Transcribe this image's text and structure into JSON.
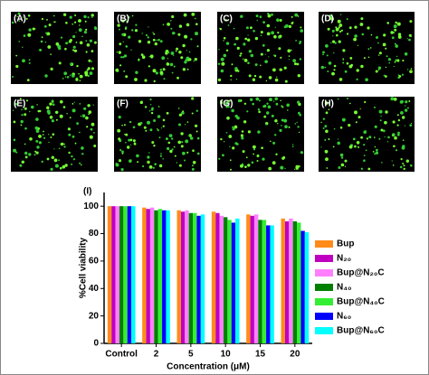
{
  "panels": [
    "(A)",
    "(B)",
    "(C)",
    "(D)",
    "(E)",
    "(F)",
    "(G)",
    "(H)"
  ],
  "chart_data": {
    "type": "bar",
    "panel_label": "(I)",
    "ylabel": "%Cell viability",
    "xlabel": "Concentration (μM)",
    "categories": [
      "Control",
      "2",
      "5",
      "10",
      "15",
      "20"
    ],
    "series": [
      {
        "name": "Bup",
        "color": "#ff8c1a",
        "values": [
          100,
          99,
          97,
          96,
          94,
          91
        ]
      },
      {
        "name": "N₂₀",
        "color": "#c000c0",
        "values": [
          100,
          98,
          96,
          95,
          93,
          89
        ]
      },
      {
        "name": "Bup@N₂₀C",
        "color": "#ff80ff",
        "values": [
          100,
          99,
          97,
          93,
          94,
          91
        ]
      },
      {
        "name": "N₄₀",
        "color": "#008000",
        "values": [
          100,
          97,
          95,
          92,
          90,
          89
        ]
      },
      {
        "name": "Bup@N₄₀C",
        "color": "#33ee33",
        "values": [
          100,
          98,
          95,
          90,
          90,
          88
        ]
      },
      {
        "name": "N₆₀",
        "color": "#0000ff",
        "values": [
          100,
          97,
          93,
          88,
          86,
          82
        ]
      },
      {
        "name": "Bup@N₆₀C",
        "color": "#00ffff",
        "values": [
          100,
          97,
          94,
          91,
          86,
          81
        ]
      }
    ],
    "ylim": [
      0,
      110
    ],
    "yticks": [
      0,
      20,
      40,
      60,
      80,
      100
    ]
  }
}
